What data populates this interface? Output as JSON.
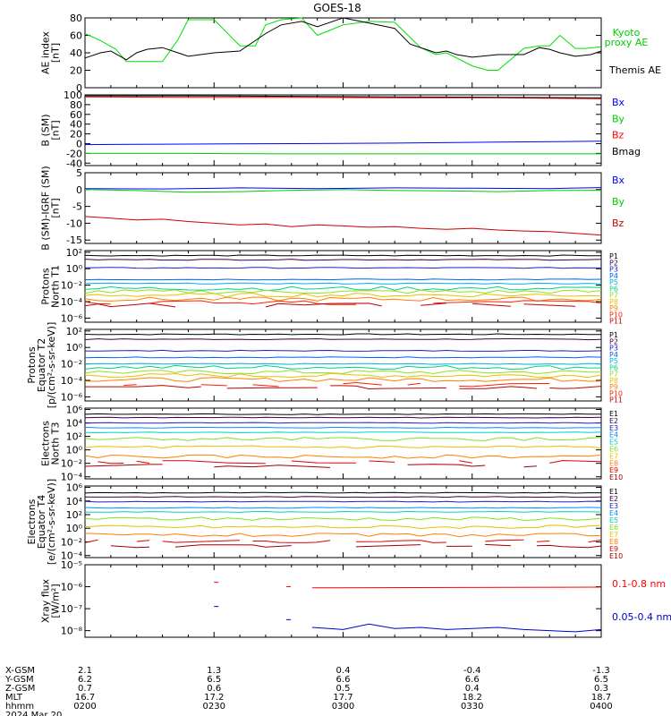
{
  "title": "GOES-18",
  "chart_data": [
    {
      "type": "line",
      "ylabel": [
        "AE index",
        "[nT]"
      ],
      "ylim": [
        0,
        80
      ],
      "yticks": [
        "0",
        "20",
        "40",
        "60",
        "80"
      ],
      "yvals": [
        0,
        20,
        40,
        60,
        80
      ],
      "legend": [
        "Kyoto proxy AE",
        "Themis AE"
      ],
      "series": [
        {
          "name": "Kyoto proxy AE",
          "color": "#00e000",
          "x": [
            0,
            3,
            6,
            8,
            10,
            12,
            15,
            18,
            20,
            25,
            30,
            33,
            35,
            38,
            42,
            45,
            50,
            55,
            60,
            65,
            68,
            70,
            75,
            78,
            80,
            85,
            88,
            90,
            92,
            95,
            97,
            100
          ],
          "y": [
            62,
            54,
            44,
            30,
            30,
            30,
            30,
            55,
            78,
            78,
            48,
            48,
            72,
            78,
            80,
            60,
            72,
            76,
            75,
            46,
            38,
            40,
            25,
            20,
            20,
            45,
            48,
            48,
            60,
            45,
            45,
            47
          ]
        },
        {
          "name": "Themis AE",
          "color": "#000000",
          "x": [
            0,
            3,
            5,
            8,
            10,
            12,
            15,
            18,
            20,
            25,
            30,
            35,
            38,
            42,
            45,
            50,
            55,
            60,
            63,
            68,
            70,
            72,
            75,
            80,
            85,
            88,
            90,
            92,
            95,
            98,
            100
          ],
          "y": [
            34,
            40,
            42,
            32,
            40,
            44,
            46,
            40,
            36,
            40,
            42,
            62,
            72,
            76,
            70,
            80,
            74,
            68,
            50,
            40,
            42,
            38,
            35,
            38,
            38,
            46,
            44,
            40,
            36,
            38,
            42
          ]
        }
      ]
    },
    {
      "type": "line",
      "ylabel": [
        "B (SM)",
        "[nT]"
      ],
      "ylim": [
        -45,
        100
      ],
      "yticks": [
        "-40",
        "-20",
        "0",
        "20",
        "40",
        "60",
        "80",
        "100"
      ],
      "yvals": [
        -40,
        -20,
        0,
        20,
        40,
        60,
        80,
        100
      ],
      "legend": [
        "Bx",
        "By",
        "Bz",
        "Bmag"
      ],
      "series": [
        {
          "name": "Bx",
          "color": "#0000ff",
          "x": [
            0,
            20,
            40,
            60,
            80,
            100
          ],
          "y": [
            -2,
            -1,
            0,
            1,
            3,
            5
          ]
        },
        {
          "name": "By",
          "color": "#00cc00",
          "x": [
            0,
            20,
            40,
            60,
            80,
            100
          ],
          "y": [
            -20,
            -20,
            -21,
            -21,
            -21,
            -21
          ]
        },
        {
          "name": "Bz",
          "color": "#ff0000",
          "x": [
            0,
            20,
            40,
            60,
            80,
            100
          ],
          "y": [
            96,
            95,
            95,
            94,
            94,
            92
          ]
        },
        {
          "name": "Bmag",
          "color": "#000000",
          "x": [
            0,
            20,
            40,
            60,
            80,
            100
          ],
          "y": [
            98,
            98,
            97,
            96,
            95,
            94
          ]
        }
      ]
    },
    {
      "type": "line",
      "ylabel": [
        "B (SM)-IGRF (SM)",
        "[nT]"
      ],
      "ylim": [
        -16,
        5
      ],
      "yticks": [
        "-15",
        "-10",
        "-5",
        "0",
        "5"
      ],
      "yvals": [
        -15,
        -10,
        -5,
        0,
        5
      ],
      "legend": [
        "Bx",
        "By",
        "Bz"
      ],
      "series": [
        {
          "name": "Bx",
          "color": "#0000ff",
          "x": [
            0,
            15,
            30,
            45,
            60,
            75,
            90,
            100
          ],
          "y": [
            0.3,
            0.2,
            0.5,
            0.3,
            0.5,
            0.4,
            0.3,
            0.6
          ]
        },
        {
          "name": "By",
          "color": "#00cc00",
          "x": [
            0,
            10,
            20,
            30,
            40,
            50,
            60,
            70,
            80,
            90,
            100
          ],
          "y": [
            0,
            -0.3,
            -0.8,
            -0.6,
            -0.2,
            0,
            -0.3,
            -0.4,
            -0.6,
            -0.3,
            -0.2
          ]
        },
        {
          "name": "Bz",
          "color": "#cc0000",
          "x": [
            0,
            5,
            10,
            15,
            20,
            25,
            30,
            35,
            40,
            45,
            50,
            55,
            60,
            65,
            70,
            75,
            80,
            85,
            90,
            95,
            100
          ],
          "y": [
            -8,
            -8.5,
            -9,
            -8.8,
            -9.5,
            -10,
            -10.5,
            -10.2,
            -11,
            -10.5,
            -10.8,
            -11.2,
            -11,
            -11.5,
            -11.8,
            -11.5,
            -12,
            -12.3,
            -12.5,
            -13,
            -13.5
          ]
        }
      ]
    },
    {
      "type": "line",
      "log": true,
      "ylabel": [
        "Protons",
        "North T1"
      ],
      "yticks": [
        "10²",
        "10⁰",
        "10⁻²",
        "10⁻⁴",
        "10⁻⁶"
      ],
      "yvals": [
        2,
        0,
        -2,
        -4,
        -6
      ],
      "ylim": [
        -6.5,
        2.2
      ],
      "legend": [
        "P1",
        "P2",
        "P3",
        "P4",
        "P5",
        "P6",
        "P7",
        "P8",
        "P9",
        "P10",
        "P11"
      ],
      "series": [
        {
          "name": "P1",
          "color": "#000000",
          "logy": 1.6
        },
        {
          "name": "P2",
          "color": "#400040",
          "logy": 1.1
        },
        {
          "name": "P3",
          "color": "#2020c0",
          "logy": 0.1
        },
        {
          "name": "P4",
          "color": "#0060ff",
          "logy": -1.3
        },
        {
          "name": "P5",
          "color": "#00b0e0",
          "logy": -1.8
        },
        {
          "name": "P6",
          "color": "#00d080",
          "logy": -2.4
        },
        {
          "name": "P7",
          "color": "#90e020",
          "logy": -2.8
        },
        {
          "name": "P8",
          "color": "#e8c000",
          "logy": -3.2
        },
        {
          "name": "P9",
          "color": "#ff8000",
          "logy": -3.7
        },
        {
          "name": "P10",
          "color": "#ff2000",
          "logy": -4.1
        },
        {
          "name": "P11",
          "color": "#c00000",
          "logy": -4.4
        }
      ]
    },
    {
      "type": "line",
      "log": true,
      "ylabel": [
        "Protons",
        "Equator T2",
        "[p/(cm²-s-sr-keV)]"
      ],
      "yticks": [
        "10²",
        "10⁰",
        "10⁻²",
        "10⁻⁴",
        "10⁻⁶"
      ],
      "yvals": [
        2,
        0,
        -2,
        -4,
        -6
      ],
      "ylim": [
        -6.5,
        2.2
      ],
      "legend": [
        "P1",
        "P2",
        "P3",
        "P4",
        "P5",
        "P6",
        "P7",
        "P8",
        "P9",
        "P10",
        "P11"
      ],
      "series": [
        {
          "name": "P1",
          "color": "#000000",
          "logy": 1.6
        },
        {
          "name": "P2",
          "color": "#400040",
          "logy": 1.0
        },
        {
          "name": "P3",
          "color": "#2020c0",
          "logy": -0.4
        },
        {
          "name": "P4",
          "color": "#0060ff",
          "logy": -1.2
        },
        {
          "name": "P5",
          "color": "#00b0e0",
          "logy": -2.0
        },
        {
          "name": "P6",
          "color": "#00d080",
          "logy": -2.4
        },
        {
          "name": "P7",
          "color": "#90e020",
          "logy": -3.0
        },
        {
          "name": "P8",
          "color": "#e8c000",
          "logy": -3.4
        },
        {
          "name": "P9",
          "color": "#ff8000",
          "logy": -3.9
        },
        {
          "name": "P10",
          "color": "#ff2000",
          "logy": -4.5
        },
        {
          "name": "P11",
          "color": "#c00000",
          "logy": -4.8
        }
      ]
    },
    {
      "type": "line",
      "log": true,
      "ylabel": [
        "Electrons",
        "North T3"
      ],
      "yticks": [
        "10⁶",
        "10⁴",
        "10²",
        "10⁰",
        "10⁻²",
        "10⁻⁴"
      ],
      "yvals": [
        6,
        4,
        2,
        0,
        -2,
        -4
      ],
      "ylim": [
        -4.3,
        6.2
      ],
      "legend": [
        "E1",
        "E2",
        "E3",
        "E4",
        "E5",
        "E6",
        "E7",
        "E8",
        "E9",
        "E10"
      ],
      "series": [
        {
          "name": "E1",
          "color": "#000000",
          "logy": 5.3
        },
        {
          "name": "E2",
          "color": "#400040",
          "logy": 4.8
        },
        {
          "name": "E3",
          "color": "#2020c0",
          "logy": 4.0
        },
        {
          "name": "E4",
          "color": "#0090ff",
          "logy": 3.3
        },
        {
          "name": "E5",
          "color": "#00d0c0",
          "logy": 2.6
        },
        {
          "name": "E6",
          "color": "#80e020",
          "logy": 1.6
        },
        {
          "name": "E7",
          "color": "#e8c000",
          "logy": 0.4
        },
        {
          "name": "E8",
          "color": "#ff8000",
          "logy": -1.0
        },
        {
          "name": "E9",
          "color": "#e00000",
          "logy": -1.8
        },
        {
          "name": "E10",
          "color": "#a00000",
          "logy": -2.4
        }
      ]
    },
    {
      "type": "line",
      "log": true,
      "ylabel": [
        "Electrons",
        "Equator T4",
        "[e/(cm²-s-sr-keV)]"
      ],
      "yticks": [
        "10⁶",
        "10⁴",
        "10²",
        "10⁰",
        "10⁻²",
        "10⁻⁴"
      ],
      "yvals": [
        6,
        4,
        2,
        0,
        -2,
        -4
      ],
      "ylim": [
        -4.3,
        6.2
      ],
      "legend": [
        "E1",
        "E2",
        "E3",
        "E4",
        "E5",
        "E6",
        "E7",
        "E8",
        "E9",
        "E10"
      ],
      "series": [
        {
          "name": "E1",
          "color": "#000000",
          "logy": 5.2
        },
        {
          "name": "E2",
          "color": "#400040",
          "logy": 4.6
        },
        {
          "name": "E3",
          "color": "#2020c0",
          "logy": 3.9
        },
        {
          "name": "E4",
          "color": "#0090ff",
          "logy": 3.0
        },
        {
          "name": "E5",
          "color": "#00d0c0",
          "logy": 2.4
        },
        {
          "name": "E6",
          "color": "#80e020",
          "logy": 1.4
        },
        {
          "name": "E7",
          "color": "#e8c000",
          "logy": 0.2
        },
        {
          "name": "E8",
          "color": "#ff8000",
          "logy": -1.0
        },
        {
          "name": "E9",
          "color": "#e00000",
          "logy": -1.9
        },
        {
          "name": "E10",
          "color": "#a00000",
          "logy": -2.6
        }
      ]
    },
    {
      "type": "line",
      "log": true,
      "ylabel": [
        "Xray flux",
        "[W/m²]"
      ],
      "yticks": [
        "10⁻⁵",
        "10⁻⁶",
        "10⁻⁷",
        "10⁻⁸"
      ],
      "yvals": [
        -5,
        -6,
        -7,
        -8
      ],
      "ylim": [
        -8.3,
        -5
      ],
      "legend": [
        "0.1-0.8 nm",
        "0.05-0.4 nm"
      ],
      "series": [
        {
          "name": "0.1-0.8 nm",
          "color": "#ff0000",
          "x": [
            44,
            100
          ],
          "y": [
            -6.05,
            -6.02
          ]
        },
        {
          "name": "0.05-0.4 nm",
          "color": "#0000cc",
          "x": [
            44,
            50,
            55,
            60,
            65,
            70,
            75,
            80,
            85,
            90,
            95,
            100
          ],
          "y": [
            -7.85,
            -7.95,
            -7.7,
            -7.9,
            -7.85,
            -7.95,
            -7.9,
            -7.85,
            -7.95,
            -8.0,
            -8.05,
            -7.95
          ]
        }
      ]
    }
  ],
  "footer": {
    "row_labels": [
      "X-GSM",
      "Y-GSM",
      "Z-GSM",
      "MLT",
      "hhmm",
      "2024 Mar 20"
    ],
    "columns": [
      {
        "x": "2.1",
        "y": "6.2",
        "z": "0.7",
        "mlt": "16.7",
        "hhmm": "0200"
      },
      {
        "x": "1.3",
        "y": "6.5",
        "z": "0.6",
        "mlt": "17.2",
        "hhmm": "0230"
      },
      {
        "x": "0.4",
        "y": "6.6",
        "z": "0.5",
        "mlt": "17.7",
        "hhmm": "0300"
      },
      {
        "x": "-0.4",
        "y": "6.6",
        "z": "0.4",
        "mlt": "18.2",
        "hhmm": "0330"
      },
      {
        "x": "-1.3",
        "y": "6.5",
        "z": "0.3",
        "mlt": "18.7",
        "hhmm": "0400"
      }
    ]
  }
}
